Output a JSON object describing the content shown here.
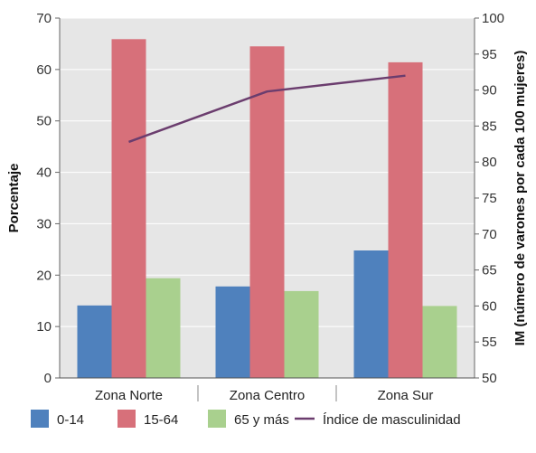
{
  "chart_data": {
    "type": "bar",
    "categories": [
      "Zona Norte",
      "Zona Centro",
      "Zona Sur"
    ],
    "series": [
      {
        "name": "0-14",
        "values": [
          14.1,
          17.8,
          24.8
        ],
        "color": "#4f81bd"
      },
      {
        "name": "15-64",
        "values": [
          65.9,
          64.5,
          61.4
        ],
        "color": "#d7707a"
      },
      {
        "name": "65 y más",
        "values": [
          19.4,
          16.9,
          14.0
        ],
        "color": "#a9d08e"
      }
    ],
    "line_series": {
      "name": "Índice de masculinidad",
      "values": [
        82.8,
        89.8,
        92.0
      ],
      "color": "#6b3d6e",
      "axis": "right"
    },
    "ylabel": "Porcentaje",
    "y2label": "IM (número de varones por cada 100 mujeres)",
    "ylim": [
      0,
      70
    ],
    "yticks": [
      0,
      10,
      20,
      30,
      40,
      50,
      60,
      70
    ],
    "y2lim": [
      50,
      100
    ],
    "y2ticks": [
      50,
      55,
      60,
      65,
      70,
      75,
      80,
      85,
      90,
      95,
      100
    ],
    "grid": true,
    "legend_position": "bottom",
    "plot_background": "#e6e6e6"
  }
}
